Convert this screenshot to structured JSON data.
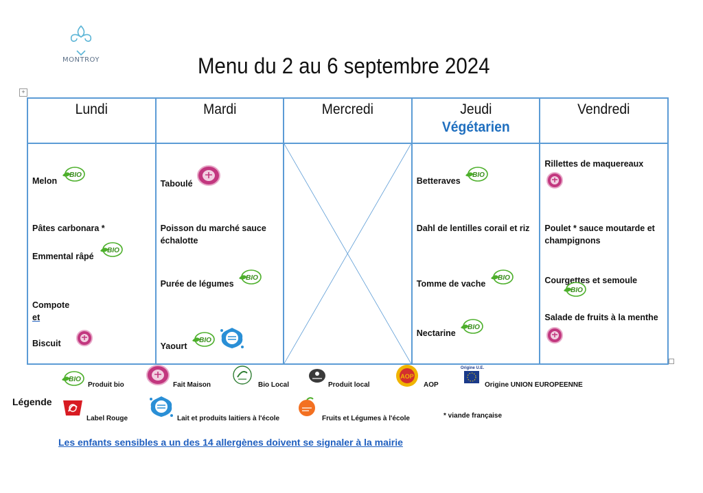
{
  "logo": {
    "text": "MONTROY"
  },
  "title": "Menu du 2 au 6 septembre 2024",
  "days": [
    {
      "name": "Lundi",
      "subtitle": ""
    },
    {
      "name": "Mardi",
      "subtitle": ""
    },
    {
      "name": "Mercredi",
      "subtitle": ""
    },
    {
      "name": "Jeudi",
      "subtitle": "Végétarien"
    },
    {
      "name": "Vendredi",
      "subtitle": ""
    }
  ],
  "menu": {
    "lundi": [
      "Melon",
      "Pâtes carbonara *",
      "Emmental râpé",
      "Compote",
      "et",
      "Biscuit"
    ],
    "mardi": [
      "Taboulé",
      "Poisson du marché sauce échalotte",
      "Purée de légumes",
      "Yaourt"
    ],
    "jeudi": [
      "Betteraves",
      "Dahl de lentilles corail et riz",
      "Tomme de vache",
      "Nectarine"
    ],
    "vendredi": [
      "Rillettes de maquereaux",
      "Poulet * sauce moutarde et champignons",
      "Courgettes et semoule",
      "Salade de fruits à la menthe"
    ]
  },
  "badges": {
    "bio": "BIO",
    "fait_maison": "fait-maison",
    "aop_text": "AOP",
    "origine_ue_small": "Origine U.E."
  },
  "legend": {
    "title": "Légende",
    "produit_bio": "Produit bio",
    "fait_maison": "Fait Maison",
    "bio_local": "Bio Local",
    "produit_local": "Produit local",
    "aop": "AOP",
    "origine_ue": "Origine UNION EUROPEENNE",
    "label_rouge": "Label Rouge",
    "lait_ecole": "Lait et produits laitiers à l'école",
    "fruits_ecole": "Fruits et Légumes à l'école",
    "viande": "* viande française"
  },
  "notice": "Les enfants sensibles a un des 14 allergènes doivent se signaler à la mairie",
  "colors": {
    "table_border": "#5b9bd5",
    "vegetarien": "#1f6fbf",
    "bio_green": "#4caf2a",
    "fait_maison": "#b0286f"
  }
}
